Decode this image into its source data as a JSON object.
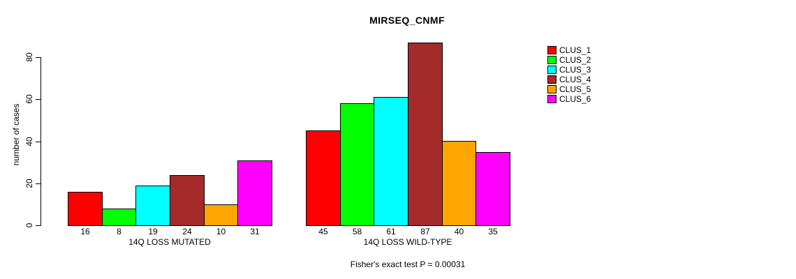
{
  "title": "MIRSEQ_CNMF",
  "footer": "Fisher's exact test P = 0.00031",
  "chart_data": {
    "type": "bar",
    "title": "MIRSEQ_CNMF",
    "xlabel": "",
    "ylabel": "number of cases",
    "yticks": [
      0,
      20,
      40,
      60,
      80
    ],
    "ylim": [
      0,
      87
    ],
    "grid": false,
    "legend_position": "right",
    "annotation": "Fisher's exact test P = 0.00031",
    "series": [
      {
        "name": "CLUS_1",
        "color": "#FF0000"
      },
      {
        "name": "CLUS_2",
        "color": "#00FF00"
      },
      {
        "name": "CLUS_3",
        "color": "#00FFFF"
      },
      {
        "name": "CLUS_4",
        "color": "#A52A2A"
      },
      {
        "name": "CLUS_5",
        "color": "#FFA500"
      },
      {
        "name": "CLUS_6",
        "color": "#FF00FF"
      }
    ],
    "groups": [
      {
        "label": "14Q LOSS MUTATED",
        "values": [
          16,
          8,
          19,
          24,
          10,
          31
        ]
      },
      {
        "label": "14Q LOSS WILD-TYPE",
        "values": [
          45,
          58,
          61,
          87,
          40,
          35
        ]
      }
    ],
    "value_labels_shown": true,
    "bar_border_color": "#000000",
    "background_color": "#FFFFFF"
  }
}
